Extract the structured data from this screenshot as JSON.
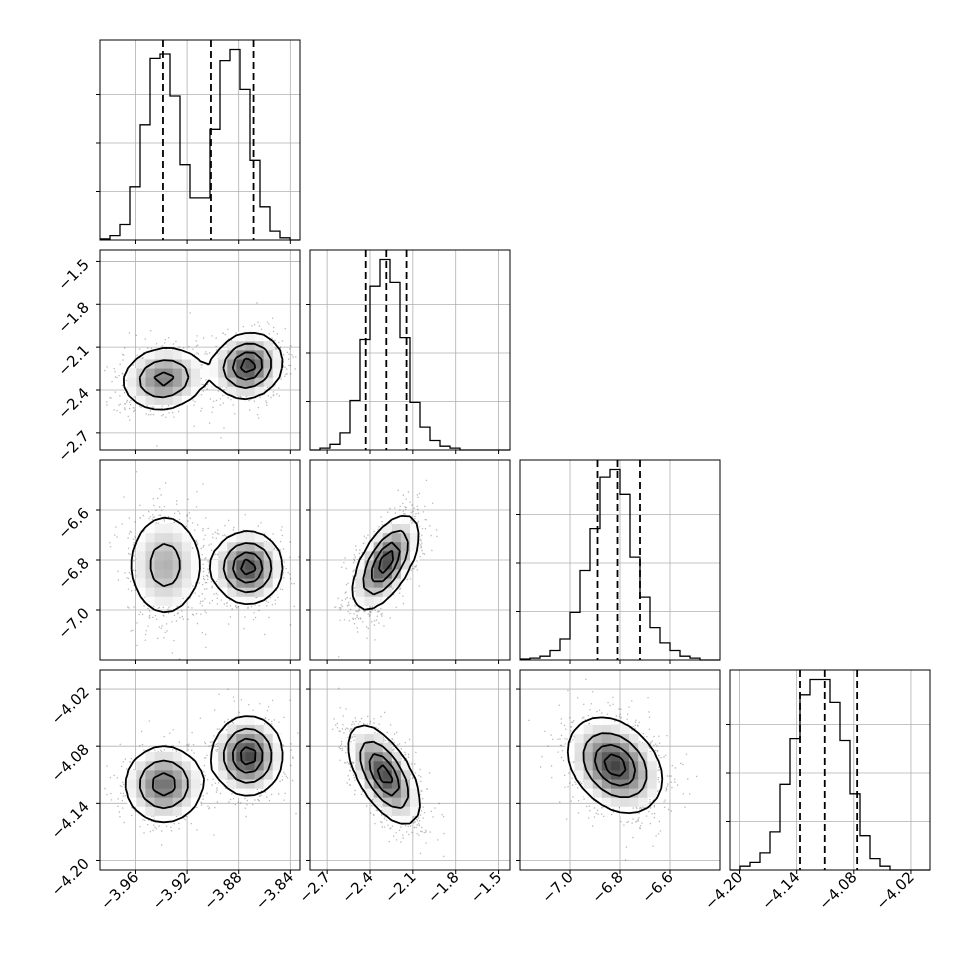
{
  "chart_data": {
    "type": "corner",
    "grid": true,
    "params": [
      {
        "ticks": [
          -3.96,
          -3.92,
          -3.88,
          -3.84
        ],
        "tick_labels": [
          "−3.96",
          "−3.92",
          "−3.88",
          "−3.84"
        ],
        "range": [
          -3.9875,
          -3.8325
        ],
        "quantiles": [
          -3.9387,
          -3.9015,
          -3.8685
        ],
        "hist_edges_start": -3.9875,
        "hist_bin_width": 0.00775,
        "hist_counts": [
          0.5,
          2,
          7,
          24,
          52,
          82,
          84,
          65,
          34,
          19,
          19,
          50,
          81,
          86,
          68,
          36,
          15,
          4,
          1,
          0
        ]
      },
      {
        "ticks": [
          -2.7,
          -2.4,
          -2.1,
          -1.8,
          -1.5
        ],
        "tick_labels": [
          "−2.7",
          "−2.4",
          "−2.1",
          "−1.8",
          "−1.5"
        ],
        "range": [
          -2.82,
          -1.42
        ],
        "quantiles": [
          -2.43,
          -2.286,
          -2.144
        ],
        "hist_edges_start": -2.82,
        "hist_bin_width": 0.07,
        "hist_counts": [
          0,
          1,
          3,
          9,
          26,
          58,
          86,
          100,
          88,
          59,
          25,
          12,
          5,
          2,
          1,
          0,
          0,
          0,
          0,
          0
        ]
      },
      {
        "ticks": [
          -7.0,
          -6.8,
          -6.6
        ],
        "tick_labels": [
          "−7.0",
          "−6.8",
          "−6.6"
        ],
        "range": [
          -7.2,
          -6.4
        ],
        "quantiles": [
          -6.89,
          -6.81,
          -6.72
        ],
        "hist_edges_start": -7.2,
        "hist_bin_width": 0.04,
        "hist_counts": [
          0.5,
          1,
          2,
          5,
          11,
          25,
          47,
          69,
          96,
          100,
          87,
          54,
          33,
          17,
          9,
          5,
          2,
          1,
          0,
          0
        ]
      },
      {
        "ticks": [
          -4.2,
          -4.14,
          -4.08,
          -4.02
        ],
        "tick_labels": [
          "−4.20",
          "−4.14",
          "−4.08",
          "−4.02"
        ],
        "range": [
          -4.21,
          -4.0
        ],
        "quantiles": [
          -4.1365,
          -4.1105,
          -4.0765
        ],
        "hist_edges_start": -4.21,
        "hist_bin_width": 0.0105,
        "hist_counts": [
          0,
          2,
          4,
          9,
          20,
          45,
          69,
          92,
          100,
          100,
          88,
          68,
          40,
          18,
          6,
          2,
          0,
          0,
          0,
          0
        ]
      }
    ],
    "pair_density": [
      {
        "row": 1,
        "col": 0,
        "rho": 0.1,
        "modes": [
          {
            "w": 0.48,
            "mx": -3.938,
            "my": -2.32,
            "sx": 0.016,
            "sy": 0.11
          },
          {
            "w": 0.52,
            "mx": -3.873,
            "my": -2.23,
            "sx": 0.013,
            "sy": 0.11
          }
        ]
      },
      {
        "row": 2,
        "col": 0,
        "rho": 0.0,
        "modes": [
          {
            "w": 0.48,
            "mx": -3.937,
            "my": -6.82,
            "sx": 0.015,
            "sy": 0.11
          },
          {
            "w": 0.52,
            "mx": -3.873,
            "my": -6.83,
            "sx": 0.013,
            "sy": 0.07
          }
        ]
      },
      {
        "row": 2,
        "col": 1,
        "rho": 0.6,
        "modes": [
          {
            "w": 1.0,
            "mx": -2.29,
            "my": -6.81,
            "sx": 0.11,
            "sy": 0.09
          }
        ]
      },
      {
        "row": 3,
        "col": 0,
        "rho": 0.0,
        "modes": [
          {
            "w": 0.48,
            "mx": -3.938,
            "my": -4.12,
            "sx": 0.015,
            "sy": 0.02
          },
          {
            "w": 0.52,
            "mx": -3.873,
            "my": -4.09,
            "sx": 0.013,
            "sy": 0.02
          }
        ]
      },
      {
        "row": 3,
        "col": 1,
        "rho": -0.6,
        "modes": [
          {
            "w": 1.0,
            "mx": -2.3,
            "my": -4.11,
            "sx": 0.12,
            "sy": 0.025
          }
        ]
      },
      {
        "row": 3,
        "col": 2,
        "rho": -0.3,
        "modes": [
          {
            "w": 1.0,
            "mx": -6.82,
            "my": -4.1,
            "sx": 0.09,
            "sy": 0.024
          }
        ]
      }
    ]
  }
}
